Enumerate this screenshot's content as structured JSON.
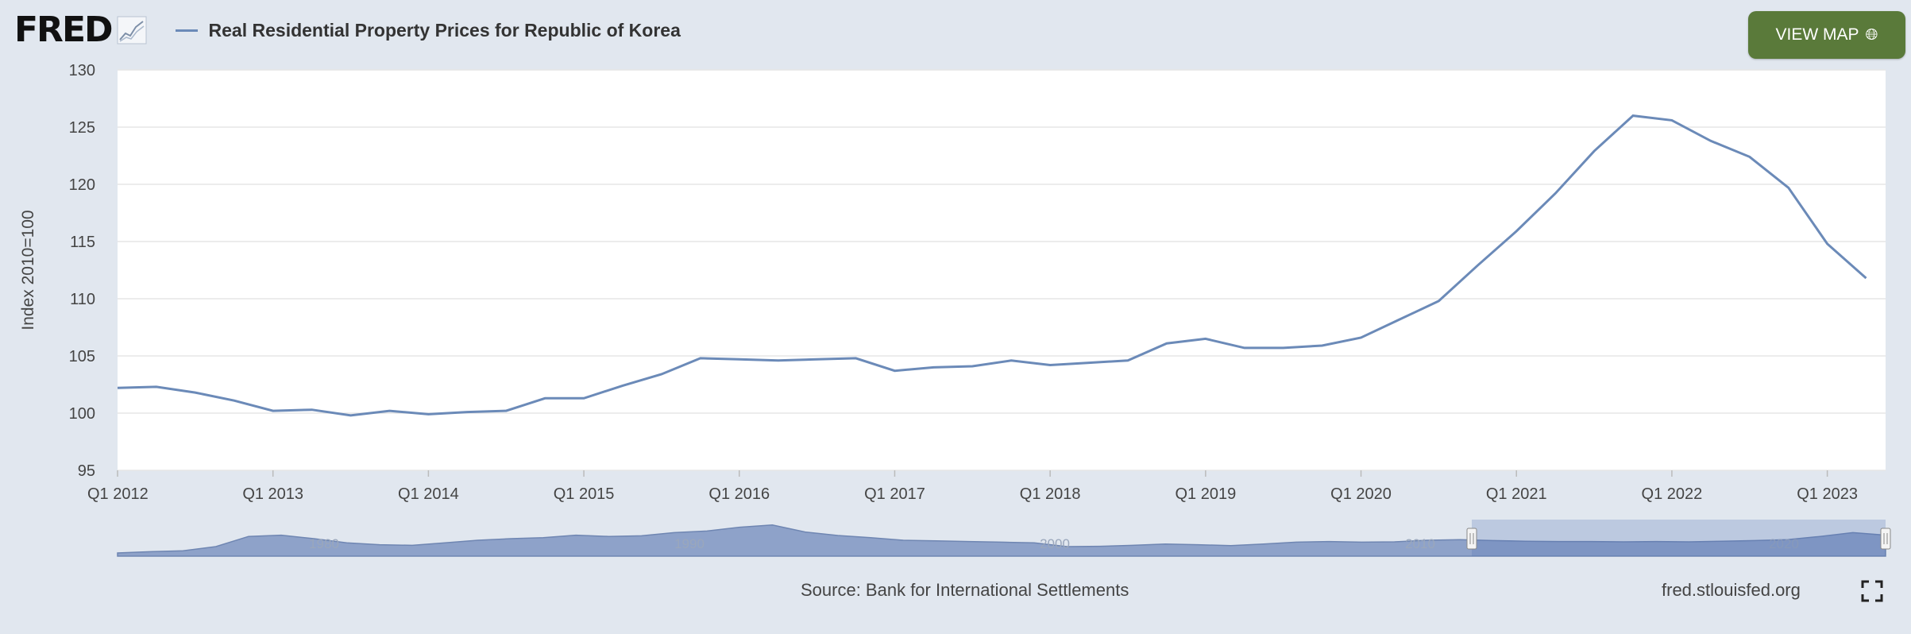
{
  "header": {
    "logo_text": "FRED",
    "series_title": "Real Residential Property Prices for Republic of Korea",
    "view_map_label": "VIEW MAP"
  },
  "footer": {
    "source": "Source: Bank for International Settlements",
    "site": "fred.stlouisfed.org"
  },
  "colors": {
    "series": "#6b8ab8",
    "view_map_button": "#5a7a3a",
    "background": "#e1e7ef"
  },
  "icons": [
    "fred-logo-graph-icon",
    "globe-icon",
    "fullscreen-icon"
  ],
  "chart_data": {
    "type": "line",
    "title": "",
    "xlabel": "",
    "ylabel": "Index 2010=100",
    "ylim": [
      95,
      130
    ],
    "yticks": [
      95,
      100,
      105,
      110,
      115,
      120,
      125,
      130
    ],
    "xticks": [
      "Q1 2012",
      "Q1 2013",
      "Q1 2014",
      "Q1 2015",
      "Q1 2016",
      "Q1 2017",
      "Q1 2018",
      "Q1 2019",
      "Q1 2020",
      "Q1 2021",
      "Q1 2022",
      "Q1 2023"
    ],
    "grid": true,
    "legend": "top-left",
    "series": [
      {
        "name": "Real Residential Property Prices for Republic of Korea",
        "x": [
          "2012-Q1",
          "2012-Q2",
          "2012-Q3",
          "2012-Q4",
          "2013-Q1",
          "2013-Q2",
          "2013-Q3",
          "2013-Q4",
          "2014-Q1",
          "2014-Q2",
          "2014-Q3",
          "2014-Q4",
          "2015-Q1",
          "2015-Q2",
          "2015-Q3",
          "2015-Q4",
          "2016-Q1",
          "2016-Q2",
          "2016-Q3",
          "2016-Q4",
          "2017-Q1",
          "2017-Q2",
          "2017-Q3",
          "2017-Q4",
          "2018-Q1",
          "2018-Q2",
          "2018-Q3",
          "2018-Q4",
          "2019-Q1",
          "2019-Q2",
          "2019-Q3",
          "2019-Q4",
          "2020-Q1",
          "2020-Q2",
          "2020-Q3",
          "2020-Q4",
          "2021-Q1",
          "2021-Q2",
          "2021-Q3",
          "2021-Q4",
          "2022-Q1",
          "2022-Q2",
          "2022-Q3",
          "2022-Q4",
          "2023-Q1",
          "2023-Q2"
        ],
        "values": [
          102.2,
          102.3,
          101.8,
          101.1,
          100.2,
          100.3,
          99.8,
          100.2,
          99.9,
          100.1,
          100.2,
          101.3,
          101.3,
          102.4,
          103.4,
          104.8,
          104.7,
          104.6,
          104.7,
          104.8,
          103.7,
          104.0,
          104.1,
          104.6,
          104.2,
          104.4,
          104.6,
          106.1,
          106.5,
          105.7,
          105.7,
          105.9,
          106.6,
          108.2,
          109.8,
          112.9,
          115.9,
          119.2,
          122.9,
          126.0,
          125.6,
          123.8,
          122.4,
          119.7,
          114.8,
          111.8
        ]
      }
    ]
  },
  "navigator": {
    "labels": [
      "1980",
      "1990",
      "2000",
      "2010",
      "2020"
    ],
    "values": [
      0.1,
      0.14,
      0.17,
      0.3,
      0.62,
      0.66,
      0.55,
      0.42,
      0.36,
      0.34,
      0.42,
      0.5,
      0.55,
      0.58,
      0.66,
      0.62,
      0.64,
      0.74,
      0.79,
      0.91,
      0.98,
      0.76,
      0.65,
      0.58,
      0.5,
      0.48,
      0.46,
      0.44,
      0.42,
      0.3,
      0.31,
      0.34,
      0.38,
      0.36,
      0.33,
      0.38,
      0.44,
      0.46,
      0.44,
      0.45,
      0.5,
      0.52,
      0.49,
      0.47,
      0.46,
      0.46,
      0.45,
      0.46,
      0.45,
      0.47,
      0.49,
      0.52,
      0.62,
      0.74,
      0.66
    ]
  }
}
